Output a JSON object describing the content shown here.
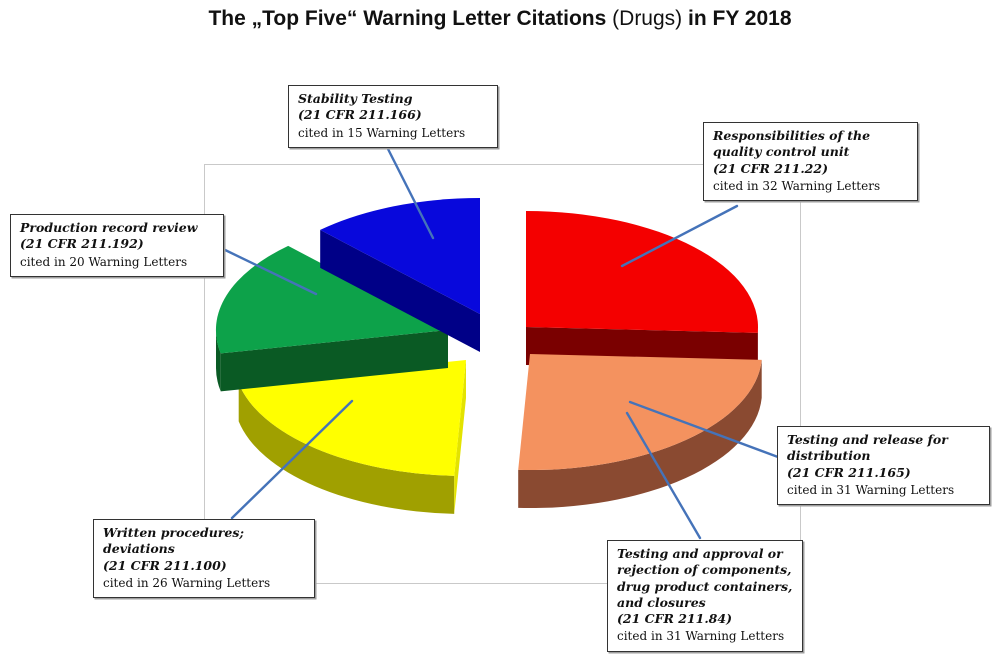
{
  "title": {
    "part1": "The „Top Five“ Warning Letter Citations",
    "part2": "(Drugs)",
    "part3": "in FY 2018"
  },
  "colors": {
    "leader_line": "#4573b9",
    "plot_frame": "#c9c9c9",
    "box_border": "#333333",
    "title_text": "#111111"
  },
  "chart_data": {
    "type": "pie",
    "style": "3d-exploded",
    "title": "The „Top Five“ Warning Letter Citations (Drugs) in FY 2018",
    "value_unit": "Warning Letters in FY 2018",
    "legend_position": "none",
    "slices": [
      {
        "label": "Responsibilities of the quality control unit",
        "citation": "(21 CFR 211.22)",
        "warning_letters": 32,
        "color": "#f40000",
        "side_color": "#7a0000"
      },
      {
        "label": "Testing and release for distribution / Testing and approval or rejection of components, drug product containers, and closures",
        "citation": "(21 CFR 211.165) / (21 CFR 211.84)",
        "warning_letters": 31,
        "color": "#f4925f",
        "side_color": "#8a4a31"
      },
      {
        "label": "Written procedures; deviations",
        "citation": "(21 CFR 211.100)",
        "warning_letters": 26,
        "color": "#ffff00",
        "side_color": "#a0a000",
        "cut_color": "#e3e300"
      },
      {
        "label": "Production record review",
        "citation": "(21 CFR 211.192)",
        "warning_letters": 20,
        "color": "#0da24a",
        "side_color": "#0a5a24"
      },
      {
        "label": "Stability Testing",
        "citation": "(21 CFR 211.166)",
        "warning_letters": 15,
        "color": "#0808dc",
        "side_color": "#000087"
      }
    ]
  },
  "callouts": [
    {
      "label": "Stability Testing",
      "citation": "(21 CFR 211.166)",
      "note": "cited in 15 Warning Letters"
    },
    {
      "label": "Responsibilities of the quality control unit",
      "citation": "(21 CFR 211.22)",
      "note": "cited in 32 Warning Letters"
    },
    {
      "label": "Production record review",
      "citation": "(21 CFR 211.192)",
      "note": "cited in 20 Warning Letters"
    },
    {
      "label": "Written procedures; deviations",
      "citation": "(21 CFR 211.100)",
      "note": "cited in 26 Warning Letters"
    },
    {
      "label": "Testing and approval or rejection of components, drug product containers, and closures",
      "citation": "(21 CFR 211.84)",
      "note": "cited in 31 Warning Letters"
    },
    {
      "label": "Testing and release for distribution",
      "citation": "(21 CFR 211.165)",
      "note": "cited in 31 Warning Letters"
    }
  ]
}
